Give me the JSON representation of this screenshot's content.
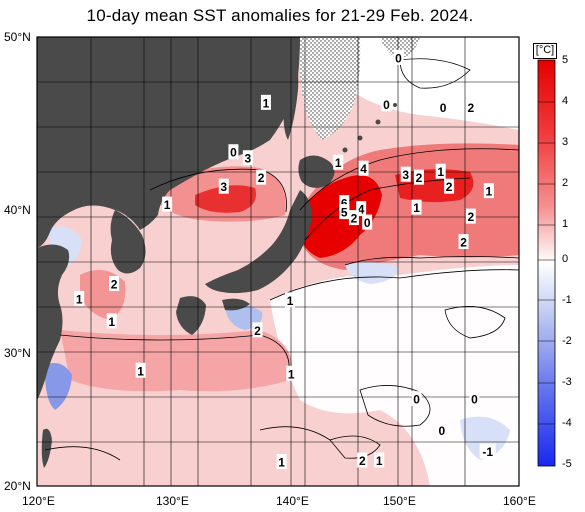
{
  "title": "10-day mean SST anomalies for 21-29 Feb. 2024.",
  "unit": "[°C]",
  "lat_labels": [
    "50°N",
    "40°N",
    "30°N",
    "20°N"
  ],
  "lon_labels": [
    "120°E",
    "130°E",
    "140°E",
    "150°E",
    "160°E"
  ],
  "colorbar_ticks": [
    "5",
    "4",
    "3",
    "2",
    "1",
    "0",
    "-1",
    "-2",
    "-3",
    "-4",
    "-5"
  ],
  "colors": {
    "land": "#4a4a4a",
    "strong_warm": "#e60000",
    "warm": "#f08080",
    "mild_warm": "#f9c8c8",
    "neutral": "#ffffff",
    "cool": "#c8d4f5",
    "strong_cool": "#2a3cf0"
  },
  "contour_labels": [
    {
      "text": "1",
      "lon": 139.0,
      "lat": 45.6
    },
    {
      "text": "0",
      "lon": 136.3,
      "lat": 42.3
    },
    {
      "text": "3",
      "lon": 137.5,
      "lat": 41.9
    },
    {
      "text": "2",
      "lon": 138.6,
      "lat": 40.6
    },
    {
      "text": "3",
      "lon": 135.5,
      "lat": 40.0
    },
    {
      "text": "1",
      "lon": 130.8,
      "lat": 38.8
    },
    {
      "text": "1",
      "lon": 145.0,
      "lat": 41.6
    },
    {
      "text": "4",
      "lon": 147.1,
      "lat": 41.2
    },
    {
      "text": "6",
      "lon": 145.5,
      "lat": 38.9
    },
    {
      "text": "5",
      "lon": 145.5,
      "lat": 38.3
    },
    {
      "text": "4",
      "lon": 146.9,
      "lat": 38.5
    },
    {
      "text": "2",
      "lon": 146.3,
      "lat": 37.9
    },
    {
      "text": "0",
      "lon": 147.4,
      "lat": 37.6
    },
    {
      "text": "0",
      "lon": 150.0,
      "lat": 48.6
    },
    {
      "text": "0",
      "lon": 149.0,
      "lat": 45.5
    },
    {
      "text": "0",
      "lon": 153.7,
      "lat": 45.3
    },
    {
      "text": "2",
      "lon": 156.0,
      "lat": 45.3
    },
    {
      "text": "3",
      "lon": 150.6,
      "lat": 40.8
    },
    {
      "text": "2",
      "lon": 151.7,
      "lat": 40.6
    },
    {
      "text": "1",
      "lon": 153.5,
      "lat": 41.0
    },
    {
      "text": "2",
      "lon": 154.2,
      "lat": 40.0
    },
    {
      "text": "1",
      "lon": 157.5,
      "lat": 39.7
    },
    {
      "text": "1",
      "lon": 151.5,
      "lat": 38.6
    },
    {
      "text": "2",
      "lon": 156.0,
      "lat": 38.0
    },
    {
      "text": "2",
      "lon": 155.4,
      "lat": 36.3
    },
    {
      "text": "2",
      "lon": 126.4,
      "lat": 33.5
    },
    {
      "text": "1",
      "lon": 123.5,
      "lat": 32.5
    },
    {
      "text": "1",
      "lon": 126.2,
      "lat": 31.0
    },
    {
      "text": "1",
      "lon": 141.0,
      "lat": 32.4
    },
    {
      "text": "2",
      "lon": 138.3,
      "lat": 30.4
    },
    {
      "text": "1",
      "lon": 128.6,
      "lat": 27.7
    },
    {
      "text": "1",
      "lon": 141.1,
      "lat": 27.5
    },
    {
      "text": "0",
      "lon": 151.5,
      "lat": 25.8
    },
    {
      "text": "0",
      "lon": 156.3,
      "lat": 25.8
    },
    {
      "text": "0",
      "lon": 153.6,
      "lat": 23.7
    },
    {
      "text": "-1",
      "lon": 157.4,
      "lat": 22.3
    },
    {
      "text": "1",
      "lon": 140.3,
      "lat": 21.6
    },
    {
      "text": "2",
      "lon": 147.0,
      "lat": 21.7
    },
    {
      "text": "1",
      "lon": 148.4,
      "lat": 21.7
    }
  ]
}
